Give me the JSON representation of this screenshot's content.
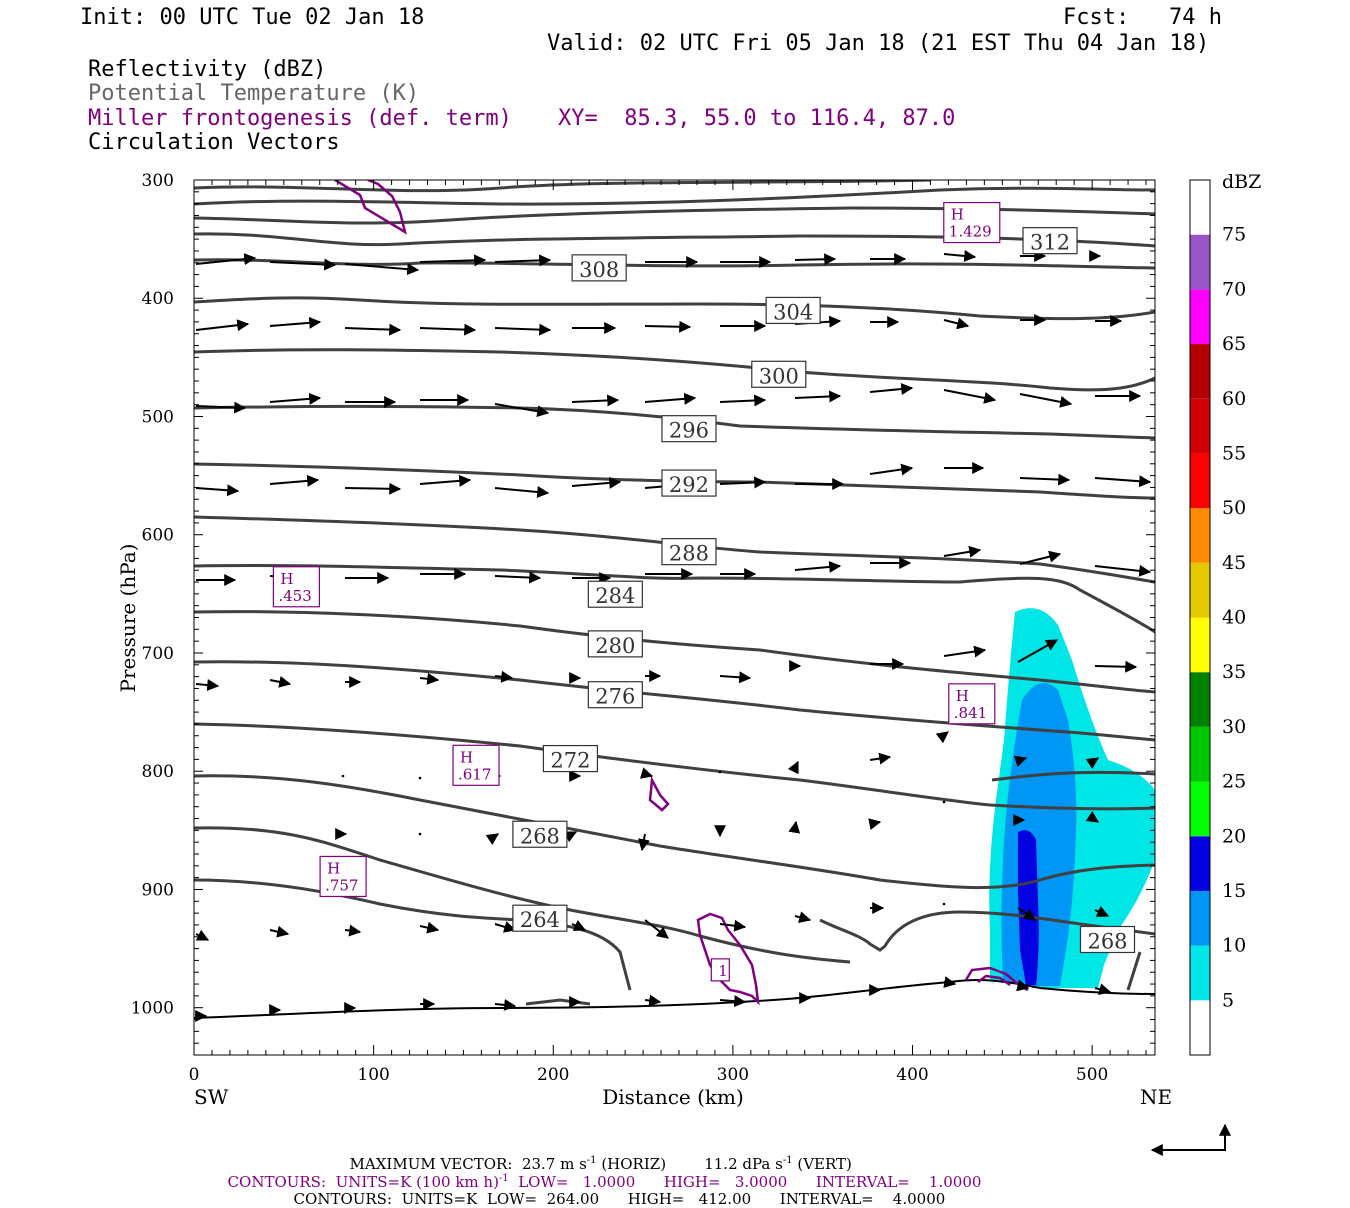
{
  "header": {
    "init": "Init: 00 UTC Tue 02 Jan 18",
    "fcst": "Fcst:   74 h",
    "valid": "Valid: 02 UTC Fri 05 Jan 18 (21 EST Thu 04 Jan 18)",
    "field1": "Reflectivity (dBZ)",
    "field2": "Potential Temperature (K)",
    "field3": "Miller frontogenesis (def. term)",
    "xy": "XY=  85.3, 55.0 to 116.4, 87.0",
    "field4": "Circulation Vectors"
  },
  "colors": {
    "theta": "#404040",
    "fronto": "#800080",
    "refl_bins": [
      "#ffffff",
      "#00e5e5",
      "#0096f5",
      "#0000e1",
      "#00ff00",
      "#00c800",
      "#008200",
      "#ffff00",
      "#e5c800",
      "#ff8c00",
      "#ff0000",
      "#d20000",
      "#b40000",
      "#ff00ff",
      "#9955c8",
      "#ffffff"
    ]
  },
  "chart_data": {
    "type": "cross-section",
    "xlabel": "Distance (km)",
    "ylabel": "Pressure (hPa)",
    "xlim": [
      0,
      535
    ],
    "ylim": [
      1040,
      300
    ],
    "x_ticks": [
      "0",
      "100",
      "200",
      "300",
      "400",
      "500"
    ],
    "y_ticks": [
      "300",
      "400",
      "500",
      "600",
      "700",
      "800",
      "900",
      "1000"
    ],
    "left_end": "SW",
    "right_end": "NE",
    "colorbar": {
      "title": "dBZ",
      "levels": [
        "5",
        "10",
        "15",
        "20",
        "25",
        "30",
        "35",
        "40",
        "45",
        "50",
        "55",
        "60",
        "65",
        "70",
        "75"
      ]
    },
    "theta_contours": [
      {
        "level": 264,
        "label": "264",
        "label_x": 192,
        "label_p": 926
      },
      {
        "level": 268,
        "label": "268",
        "label_x": 192,
        "label_p": 855
      },
      {
        "level": 268,
        "label": "268",
        "label_x": 508,
        "label_p": 944
      },
      {
        "level": 272,
        "label": "272",
        "label_x": 209,
        "label_p": 791
      },
      {
        "level": 276,
        "label": "276",
        "label_x": 234,
        "label_p": 737
      },
      {
        "level": 280,
        "label": "280",
        "label_x": 234,
        "label_p": 694
      },
      {
        "level": 284,
        "label": "284",
        "label_x": 234,
        "label_p": 652
      },
      {
        "level": 288,
        "label": "288",
        "label_x": 275,
        "label_p": 616
      },
      {
        "level": 292,
        "label": "292",
        "label_x": 275,
        "label_p": 558
      },
      {
        "level": 296,
        "label": "296",
        "label_x": 275,
        "label_p": 512
      },
      {
        "level": 300,
        "label": "300",
        "label_x": 325,
        "label_p": 466
      },
      {
        "level": 304,
        "label": "304",
        "label_x": 333,
        "label_p": 412
      },
      {
        "level": 308,
        "label": "308",
        "label_x": 225,
        "label_p": 376
      },
      {
        "level": 312,
        "label": "312",
        "label_x": 476,
        "label_p": 353
      }
    ],
    "frontogenesis_maxima": [
      {
        "label": "H",
        "value": ".453",
        "x": 57,
        "p": 644
      },
      {
        "label": "H",
        "value": ".617",
        "x": 157,
        "p": 795
      },
      {
        "label": "H",
        "value": ".757",
        "x": 83,
        "p": 889
      },
      {
        "label": "H",
        "value": ".841",
        "x": 433,
        "p": 743
      },
      {
        "label": "H",
        "value": "1.429",
        "x": 433,
        "p": 336
      },
      {
        "label": "1",
        "value": "",
        "x": 293,
        "p": 968
      }
    ]
  },
  "footer": {
    "maxvec_label": "MAXIMUM VECTOR:",
    "maxvec_h": "23.7 m s",
    "maxvec_h_unit": "(HORIZ)",
    "maxvec_v": "11.2 dPa s",
    "maxvec_v_unit": "(VERT)",
    "c1_label": "CONTOURS:",
    "c1_units": "UNITS=K (100 km h)",
    "c1_low": "LOW=   1.0000",
    "c1_high": "HIGH=   3.0000",
    "c1_int": "INTERVAL=    1.0000",
    "c2_label": "CONTOURS:",
    "c2_units": "UNITS=K",
    "c2_low": "LOW=  264.00",
    "c2_high": "HIGH=   412.00",
    "c2_int": "INTERVAL=    4.0000",
    "sup_minus1": "-1"
  }
}
